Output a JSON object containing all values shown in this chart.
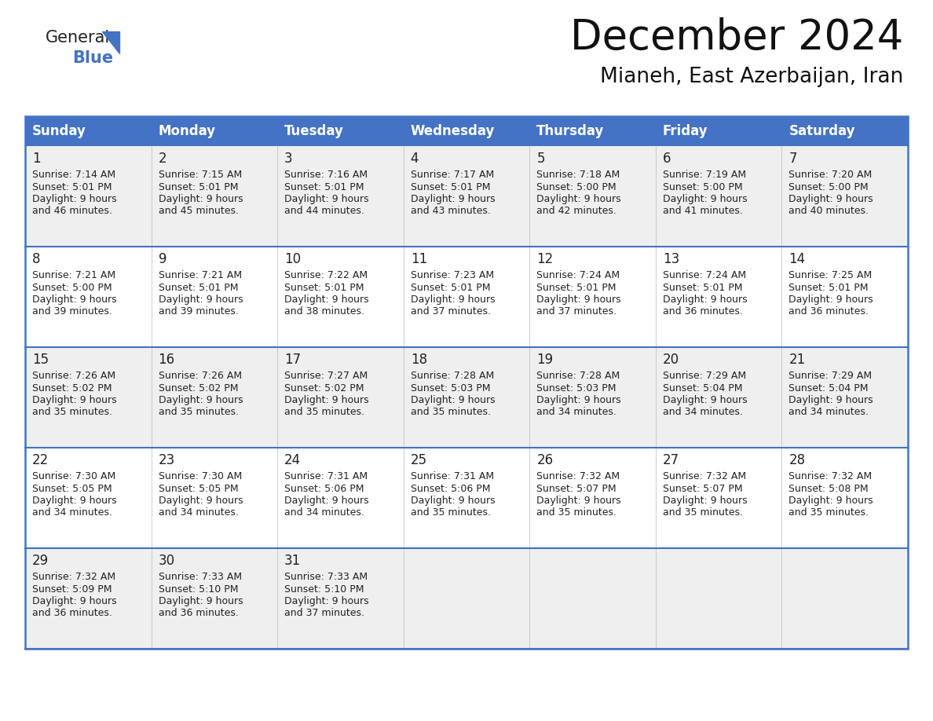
{
  "title": "December 2024",
  "subtitle": "Mianeh, East Azerbaijan, Iran",
  "header_bg": "#4472C4",
  "header_text": "#FFFFFF",
  "row_bg_odd": "#EFEFEF",
  "row_bg_even": "#FFFFFF",
  "text_color": "#222222",
  "border_color": "#4472C4",
  "day_headers": [
    "Sunday",
    "Monday",
    "Tuesday",
    "Wednesday",
    "Thursday",
    "Friday",
    "Saturday"
  ],
  "calendar_data": [
    [
      {
        "day": 1,
        "sunrise": "7:14 AM",
        "sunset": "5:01 PM",
        "daylight_hours": 9,
        "daylight_minutes": 46
      },
      {
        "day": 2,
        "sunrise": "7:15 AM",
        "sunset": "5:01 PM",
        "daylight_hours": 9,
        "daylight_minutes": 45
      },
      {
        "day": 3,
        "sunrise": "7:16 AM",
        "sunset": "5:01 PM",
        "daylight_hours": 9,
        "daylight_minutes": 44
      },
      {
        "day": 4,
        "sunrise": "7:17 AM",
        "sunset": "5:01 PM",
        "daylight_hours": 9,
        "daylight_minutes": 43
      },
      {
        "day": 5,
        "sunrise": "7:18 AM",
        "sunset": "5:00 PM",
        "daylight_hours": 9,
        "daylight_minutes": 42
      },
      {
        "day": 6,
        "sunrise": "7:19 AM",
        "sunset": "5:00 PM",
        "daylight_hours": 9,
        "daylight_minutes": 41
      },
      {
        "day": 7,
        "sunrise": "7:20 AM",
        "sunset": "5:00 PM",
        "daylight_hours": 9,
        "daylight_minutes": 40
      }
    ],
    [
      {
        "day": 8,
        "sunrise": "7:21 AM",
        "sunset": "5:00 PM",
        "daylight_hours": 9,
        "daylight_minutes": 39
      },
      {
        "day": 9,
        "sunrise": "7:21 AM",
        "sunset": "5:01 PM",
        "daylight_hours": 9,
        "daylight_minutes": 39
      },
      {
        "day": 10,
        "sunrise": "7:22 AM",
        "sunset": "5:01 PM",
        "daylight_hours": 9,
        "daylight_minutes": 38
      },
      {
        "day": 11,
        "sunrise": "7:23 AM",
        "sunset": "5:01 PM",
        "daylight_hours": 9,
        "daylight_minutes": 37
      },
      {
        "day": 12,
        "sunrise": "7:24 AM",
        "sunset": "5:01 PM",
        "daylight_hours": 9,
        "daylight_minutes": 37
      },
      {
        "day": 13,
        "sunrise": "7:24 AM",
        "sunset": "5:01 PM",
        "daylight_hours": 9,
        "daylight_minutes": 36
      },
      {
        "day": 14,
        "sunrise": "7:25 AM",
        "sunset": "5:01 PM",
        "daylight_hours": 9,
        "daylight_minutes": 36
      }
    ],
    [
      {
        "day": 15,
        "sunrise": "7:26 AM",
        "sunset": "5:02 PM",
        "daylight_hours": 9,
        "daylight_minutes": 35
      },
      {
        "day": 16,
        "sunrise": "7:26 AM",
        "sunset": "5:02 PM",
        "daylight_hours": 9,
        "daylight_minutes": 35
      },
      {
        "day": 17,
        "sunrise": "7:27 AM",
        "sunset": "5:02 PM",
        "daylight_hours": 9,
        "daylight_minutes": 35
      },
      {
        "day": 18,
        "sunrise": "7:28 AM",
        "sunset": "5:03 PM",
        "daylight_hours": 9,
        "daylight_minutes": 35
      },
      {
        "day": 19,
        "sunrise": "7:28 AM",
        "sunset": "5:03 PM",
        "daylight_hours": 9,
        "daylight_minutes": 34
      },
      {
        "day": 20,
        "sunrise": "7:29 AM",
        "sunset": "5:04 PM",
        "daylight_hours": 9,
        "daylight_minutes": 34
      },
      {
        "day": 21,
        "sunrise": "7:29 AM",
        "sunset": "5:04 PM",
        "daylight_hours": 9,
        "daylight_minutes": 34
      }
    ],
    [
      {
        "day": 22,
        "sunrise": "7:30 AM",
        "sunset": "5:05 PM",
        "daylight_hours": 9,
        "daylight_minutes": 34
      },
      {
        "day": 23,
        "sunrise": "7:30 AM",
        "sunset": "5:05 PM",
        "daylight_hours": 9,
        "daylight_minutes": 34
      },
      {
        "day": 24,
        "sunrise": "7:31 AM",
        "sunset": "5:06 PM",
        "daylight_hours": 9,
        "daylight_minutes": 34
      },
      {
        "day": 25,
        "sunrise": "7:31 AM",
        "sunset": "5:06 PM",
        "daylight_hours": 9,
        "daylight_minutes": 35
      },
      {
        "day": 26,
        "sunrise": "7:32 AM",
        "sunset": "5:07 PM",
        "daylight_hours": 9,
        "daylight_minutes": 35
      },
      {
        "day": 27,
        "sunrise": "7:32 AM",
        "sunset": "5:07 PM",
        "daylight_hours": 9,
        "daylight_minutes": 35
      },
      {
        "day": 28,
        "sunrise": "7:32 AM",
        "sunset": "5:08 PM",
        "daylight_hours": 9,
        "daylight_minutes": 35
      }
    ],
    [
      {
        "day": 29,
        "sunrise": "7:32 AM",
        "sunset": "5:09 PM",
        "daylight_hours": 9,
        "daylight_minutes": 36
      },
      {
        "day": 30,
        "sunrise": "7:33 AM",
        "sunset": "5:10 PM",
        "daylight_hours": 9,
        "daylight_minutes": 36
      },
      {
        "day": 31,
        "sunrise": "7:33 AM",
        "sunset": "5:10 PM",
        "daylight_hours": 9,
        "daylight_minutes": 37
      },
      null,
      null,
      null,
      null
    ]
  ],
  "title_fontsize": 38,
  "subtitle_fontsize": 19,
  "header_fontsize": 12,
  "day_num_fontsize": 12,
  "cell_text_fontsize": 9
}
